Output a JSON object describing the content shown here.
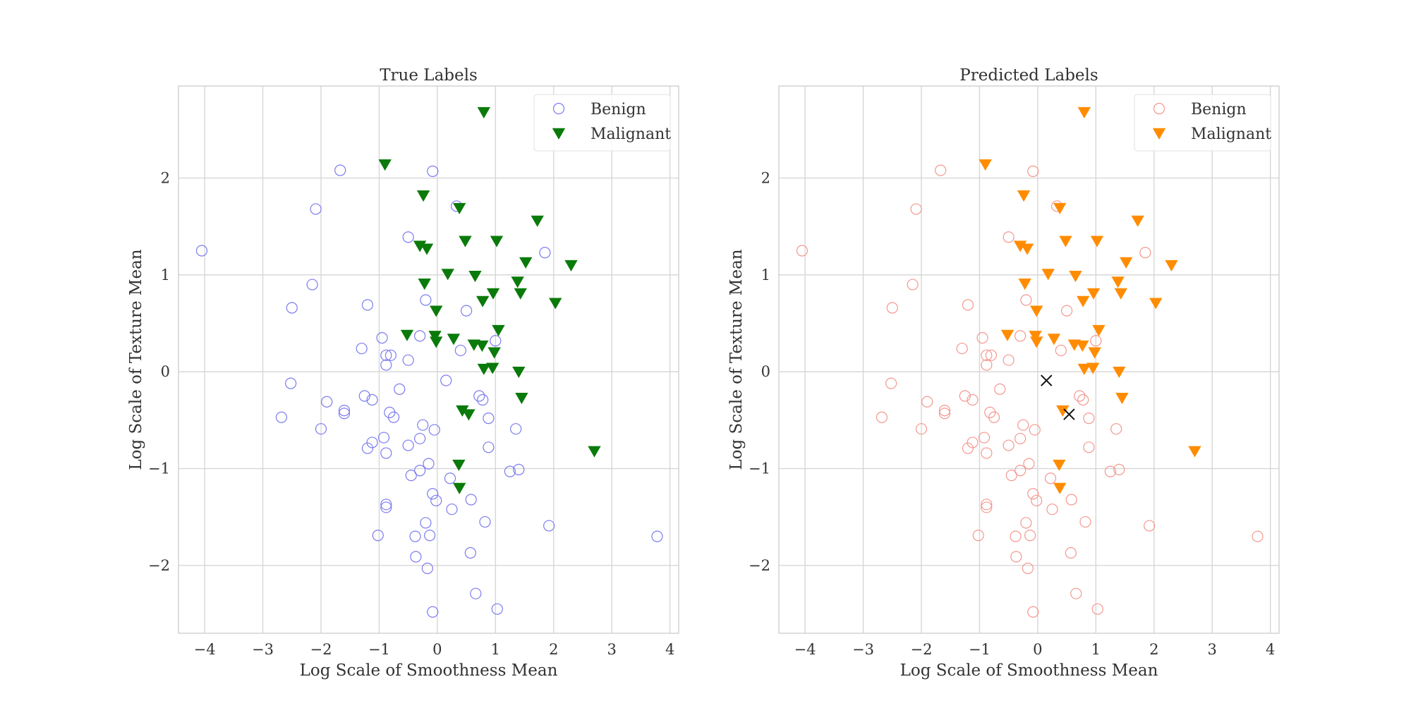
{
  "chart_data": [
    {
      "type": "scatter",
      "title": "True Labels",
      "xlabel": "Log Scale of Smoothness Mean",
      "ylabel": "Log Scale of Texture Mean",
      "xlim": [
        -4.45,
        4.15
      ],
      "ylim": [
        -2.7,
        2.95
      ],
      "xticks": [
        -4,
        -3,
        -2,
        -1,
        0,
        1,
        2,
        3,
        4
      ],
      "yticks": [
        -2,
        -1,
        0,
        1,
        2
      ],
      "grid": true,
      "legend": {
        "position": "upper right"
      },
      "series": [
        {
          "name": "Benign",
          "marker": "circle-open",
          "color": "#7b7bf0",
          "points": [
            [
              -4.05,
              1.25
            ],
            [
              -1.67,
              2.08
            ],
            [
              -0.08,
              2.07
            ],
            [
              -2.09,
              1.68
            ],
            [
              0.33,
              1.71
            ],
            [
              -2.15,
              0.9
            ],
            [
              -2.5,
              0.66
            ],
            [
              -0.5,
              1.39
            ],
            [
              -1.2,
              0.69
            ],
            [
              -0.2,
              0.74
            ],
            [
              0.5,
              0.63
            ],
            [
              1.85,
              1.23
            ],
            [
              -0.95,
              0.35
            ],
            [
              -0.3,
              0.37
            ],
            [
              -1.3,
              0.24
            ],
            [
              0.4,
              0.22
            ],
            [
              -0.88,
              0.17
            ],
            [
              -0.8,
              0.17
            ],
            [
              -0.88,
              0.07
            ],
            [
              -0.5,
              0.12
            ],
            [
              1.0,
              0.32
            ],
            [
              0.15,
              -0.09
            ],
            [
              -2.52,
              -0.12
            ],
            [
              -0.65,
              -0.18
            ],
            [
              -1.9,
              -0.31
            ],
            [
              -1.25,
              -0.25
            ],
            [
              -1.12,
              -0.29
            ],
            [
              0.72,
              -0.25
            ],
            [
              0.78,
              -0.29
            ],
            [
              -0.82,
              -0.42
            ],
            [
              -1.6,
              -0.4
            ],
            [
              -1.6,
              -0.43
            ],
            [
              -0.75,
              -0.47
            ],
            [
              -2.68,
              -0.47
            ],
            [
              0.88,
              -0.48
            ],
            [
              -0.25,
              -0.55
            ],
            [
              -2.0,
              -0.59
            ],
            [
              -0.05,
              -0.6
            ],
            [
              1.35,
              -0.59
            ],
            [
              -0.92,
              -0.68
            ],
            [
              -0.3,
              -0.69
            ],
            [
              -1.12,
              -0.73
            ],
            [
              -0.5,
              -0.76
            ],
            [
              -1.2,
              -0.79
            ],
            [
              0.88,
              -0.78
            ],
            [
              -0.88,
              -0.84
            ],
            [
              -0.15,
              -0.95
            ],
            [
              -0.3,
              -1.02
            ],
            [
              -0.45,
              -1.07
            ],
            [
              1.25,
              -1.03
            ],
            [
              1.4,
              -1.01
            ],
            [
              0.22,
              -1.1
            ],
            [
              -0.08,
              -1.26
            ],
            [
              -0.02,
              -1.33
            ],
            [
              0.58,
              -1.32
            ],
            [
              -0.88,
              -1.37
            ],
            [
              -0.88,
              -1.4
            ],
            [
              0.25,
              -1.42
            ],
            [
              -0.2,
              -1.56
            ],
            [
              0.82,
              -1.55
            ],
            [
              1.92,
              -1.59
            ],
            [
              -1.02,
              -1.69
            ],
            [
              -0.38,
              -1.7
            ],
            [
              -0.13,
              -1.69
            ],
            [
              3.78,
              -1.7
            ],
            [
              0.57,
              -1.87
            ],
            [
              -0.37,
              -1.91
            ],
            [
              -0.17,
              -2.03
            ],
            [
              0.66,
              -2.29
            ],
            [
              -0.08,
              -2.48
            ],
            [
              1.03,
              -2.45
            ]
          ]
        },
        {
          "name": "Malignant",
          "marker": "triangle-down",
          "color": "#0a7a0a",
          "points": [
            [
              0.8,
              2.68
            ],
            [
              -0.9,
              2.14
            ],
            [
              -0.24,
              1.82
            ],
            [
              0.38,
              1.69
            ],
            [
              1.72,
              1.56
            ],
            [
              0.48,
              1.35
            ],
            [
              1.02,
              1.35
            ],
            [
              -0.3,
              1.3
            ],
            [
              -0.18,
              1.27
            ],
            [
              1.52,
              1.13
            ],
            [
              2.3,
              1.1
            ],
            [
              0.18,
              1.01
            ],
            [
              0.65,
              0.99
            ],
            [
              1.38,
              0.93
            ],
            [
              -0.22,
              0.91
            ],
            [
              0.96,
              0.81
            ],
            [
              1.43,
              0.81
            ],
            [
              0.78,
              0.73
            ],
            [
              2.03,
              0.71
            ],
            [
              -0.02,
              0.63
            ],
            [
              1.05,
              0.43
            ],
            [
              -0.52,
              0.38
            ],
            [
              -0.04,
              0.37
            ],
            [
              0.28,
              0.34
            ],
            [
              -0.02,
              0.31
            ],
            [
              0.63,
              0.28
            ],
            [
              0.77,
              0.27
            ],
            [
              0.98,
              0.2
            ],
            [
              0.8,
              0.03
            ],
            [
              0.95,
              0.04
            ],
            [
              1.4,
              0.0
            ],
            [
              1.45,
              -0.27
            ],
            [
              0.43,
              -0.4
            ],
            [
              0.54,
              -0.44
            ],
            [
              2.7,
              -0.82
            ],
            [
              0.37,
              -0.96
            ],
            [
              0.38,
              -1.2
            ]
          ]
        }
      ]
    },
    {
      "type": "scatter",
      "title": "Predicted Labels",
      "xlabel": "Log Scale of Smoothness Mean",
      "ylabel": "Log Scale of Texture Mean",
      "xlim": [
        -4.45,
        4.15
      ],
      "ylim": [
        -2.7,
        2.95
      ],
      "xticks": [
        -4,
        -3,
        -2,
        -1,
        0,
        1,
        2,
        3,
        4
      ],
      "yticks": [
        -2,
        -1,
        0,
        1,
        2
      ],
      "grid": true,
      "legend": {
        "position": "upper right"
      },
      "series": [
        {
          "name": "Benign",
          "marker": "circle-open",
          "color": "#f4978e",
          "points": [
            [
              -4.05,
              1.25
            ],
            [
              -1.67,
              2.08
            ],
            [
              -0.08,
              2.07
            ],
            [
              -2.09,
              1.68
            ],
            [
              0.33,
              1.71
            ],
            [
              -2.15,
              0.9
            ],
            [
              -2.5,
              0.66
            ],
            [
              -0.5,
              1.39
            ],
            [
              -1.2,
              0.69
            ],
            [
              -0.2,
              0.74
            ],
            [
              0.5,
              0.63
            ],
            [
              1.85,
              1.23
            ],
            [
              -0.95,
              0.35
            ],
            [
              -0.3,
              0.37
            ],
            [
              -1.3,
              0.24
            ],
            [
              0.4,
              0.22
            ],
            [
              -0.88,
              0.17
            ],
            [
              -0.8,
              0.17
            ],
            [
              -0.88,
              0.07
            ],
            [
              -0.5,
              0.12
            ],
            [
              1.0,
              0.32
            ],
            [
              -2.52,
              -0.12
            ],
            [
              -0.65,
              -0.18
            ],
            [
              -1.9,
              -0.31
            ],
            [
              -1.25,
              -0.25
            ],
            [
              -1.12,
              -0.29
            ],
            [
              0.72,
              -0.25
            ],
            [
              0.78,
              -0.29
            ],
            [
              -0.82,
              -0.42
            ],
            [
              -1.6,
              -0.4
            ],
            [
              -1.6,
              -0.43
            ],
            [
              -0.75,
              -0.47
            ],
            [
              -2.68,
              -0.47
            ],
            [
              0.88,
              -0.48
            ],
            [
              -0.25,
              -0.55
            ],
            [
              -2.0,
              -0.59
            ],
            [
              -0.05,
              -0.6
            ],
            [
              1.35,
              -0.59
            ],
            [
              -0.92,
              -0.68
            ],
            [
              -0.3,
              -0.69
            ],
            [
              -1.12,
              -0.73
            ],
            [
              -0.5,
              -0.76
            ],
            [
              -1.2,
              -0.79
            ],
            [
              0.88,
              -0.78
            ],
            [
              -0.88,
              -0.84
            ],
            [
              -0.15,
              -0.95
            ],
            [
              -0.3,
              -1.02
            ],
            [
              -0.45,
              -1.07
            ],
            [
              1.25,
              -1.03
            ],
            [
              1.4,
              -1.01
            ],
            [
              0.22,
              -1.1
            ],
            [
              -0.08,
              -1.26
            ],
            [
              -0.02,
              -1.33
            ],
            [
              0.58,
              -1.32
            ],
            [
              -0.88,
              -1.37
            ],
            [
              -0.88,
              -1.4
            ],
            [
              0.25,
              -1.42
            ],
            [
              -0.2,
              -1.56
            ],
            [
              0.82,
              -1.55
            ],
            [
              1.92,
              -1.59
            ],
            [
              -1.02,
              -1.69
            ],
            [
              -0.38,
              -1.7
            ],
            [
              -0.13,
              -1.69
            ],
            [
              3.78,
              -1.7
            ],
            [
              0.57,
              -1.87
            ],
            [
              -0.37,
              -1.91
            ],
            [
              -0.17,
              -2.03
            ],
            [
              0.66,
              -2.29
            ],
            [
              -0.08,
              -2.48
            ],
            [
              1.03,
              -2.45
            ]
          ]
        },
        {
          "name": "Malignant",
          "marker": "triangle-down",
          "color": "#ff8c00",
          "points": [
            [
              0.8,
              2.68
            ],
            [
              -0.9,
              2.14
            ],
            [
              -0.24,
              1.82
            ],
            [
              0.38,
              1.69
            ],
            [
              1.72,
              1.56
            ],
            [
              0.48,
              1.35
            ],
            [
              1.02,
              1.35
            ],
            [
              -0.3,
              1.3
            ],
            [
              -0.18,
              1.27
            ],
            [
              1.52,
              1.13
            ],
            [
              2.3,
              1.1
            ],
            [
              0.18,
              1.01
            ],
            [
              0.65,
              0.99
            ],
            [
              1.38,
              0.93
            ],
            [
              -0.22,
              0.91
            ],
            [
              0.96,
              0.81
            ],
            [
              1.43,
              0.81
            ],
            [
              0.78,
              0.73
            ],
            [
              2.03,
              0.71
            ],
            [
              -0.02,
              0.63
            ],
            [
              1.05,
              0.43
            ],
            [
              -0.52,
              0.38
            ],
            [
              -0.04,
              0.37
            ],
            [
              0.28,
              0.34
            ],
            [
              -0.02,
              0.31
            ],
            [
              0.63,
              0.28
            ],
            [
              0.77,
              0.27
            ],
            [
              0.98,
              0.2
            ],
            [
              0.8,
              0.03
            ],
            [
              0.95,
              0.04
            ],
            [
              1.4,
              0.0
            ],
            [
              1.45,
              -0.27
            ],
            [
              0.43,
              -0.4
            ],
            [
              2.7,
              -0.82
            ],
            [
              0.37,
              -0.96
            ],
            [
              0.38,
              -1.2
            ]
          ]
        },
        {
          "marker": "x",
          "color": "#111111",
          "points": [
            [
              0.15,
              -0.09
            ],
            [
              0.54,
              -0.44
            ]
          ]
        }
      ]
    }
  ]
}
